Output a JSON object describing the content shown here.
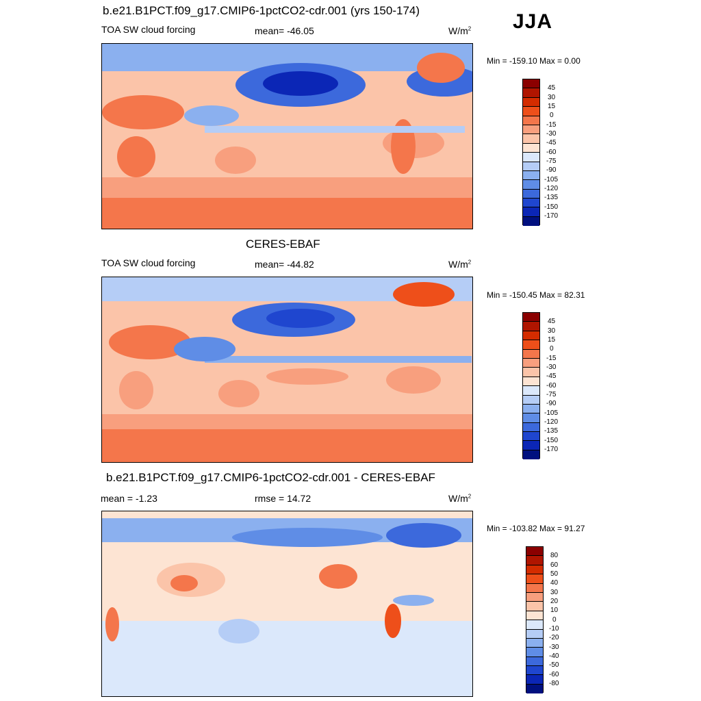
{
  "season": "JJA",
  "colors": {
    "abs_scale": [
      "#8b0000",
      "#b01500",
      "#d42c00",
      "#ee4f1a",
      "#f4764b",
      "#f89f7e",
      "#fbc4a9",
      "#fde4d3",
      "#dbe8fb",
      "#b5cdf6",
      "#8bb0ef",
      "#5f8de6",
      "#3c69dc",
      "#1f46cf",
      "#0b26b6",
      "#00107f"
    ],
    "diff_scale": [
      "#8b0000",
      "#b01500",
      "#d42c00",
      "#ee4f1a",
      "#f4764b",
      "#f89f7e",
      "#fbc4a9",
      "#fde4d3",
      "#dbe8fb",
      "#b5cdf6",
      "#8bb0ef",
      "#5f8de6",
      "#3c69dc",
      "#1f46cf",
      "#0b26b6",
      "#00107f"
    ]
  },
  "panels": [
    {
      "title": "b.e21.B1PCT.f09_g17.CMIP6-1pctCO2-cdr.001 (yrs 150-174)",
      "left_label": "TOA SW cloud forcing",
      "center_label": "mean= -46.05",
      "units_base": "W/m",
      "units_exp": "2",
      "minmax": "Min = -159.10 Max =   0.00",
      "colorbar_ticks": [
        "45",
        "30",
        "15",
        "0",
        "-15",
        "-30",
        "-45",
        "-60",
        "-75",
        "-90",
        "-105",
        "-120",
        "-135",
        "-150",
        "-170"
      ]
    },
    {
      "title": "CERES-EBAF",
      "left_label": "TOA SW cloud forcing",
      "center_label": "mean= -44.82",
      "units_base": "W/m",
      "units_exp": "2",
      "minmax": "Min = -150.45 Max =  82.31",
      "colorbar_ticks": [
        "45",
        "30",
        "15",
        "0",
        "-15",
        "-30",
        "-45",
        "-60",
        "-75",
        "-90",
        "-105",
        "-120",
        "-135",
        "-150",
        "-170"
      ]
    },
    {
      "title": "b.e21.B1PCT.f09_g17.CMIP6-1pctCO2-cdr.001 - CERES-EBAF",
      "left_label": "mean =  -1.23",
      "center_label": "rmse =  14.72",
      "units_base": "W/m",
      "units_exp": "2",
      "minmax": "Min = -103.82 Max =  91.27",
      "colorbar_ticks": [
        "80",
        "60",
        "50",
        "40",
        "30",
        "20",
        "10",
        "0",
        "-10",
        "-20",
        "-30",
        "-40",
        "-50",
        "-60",
        "-80"
      ]
    }
  ]
}
